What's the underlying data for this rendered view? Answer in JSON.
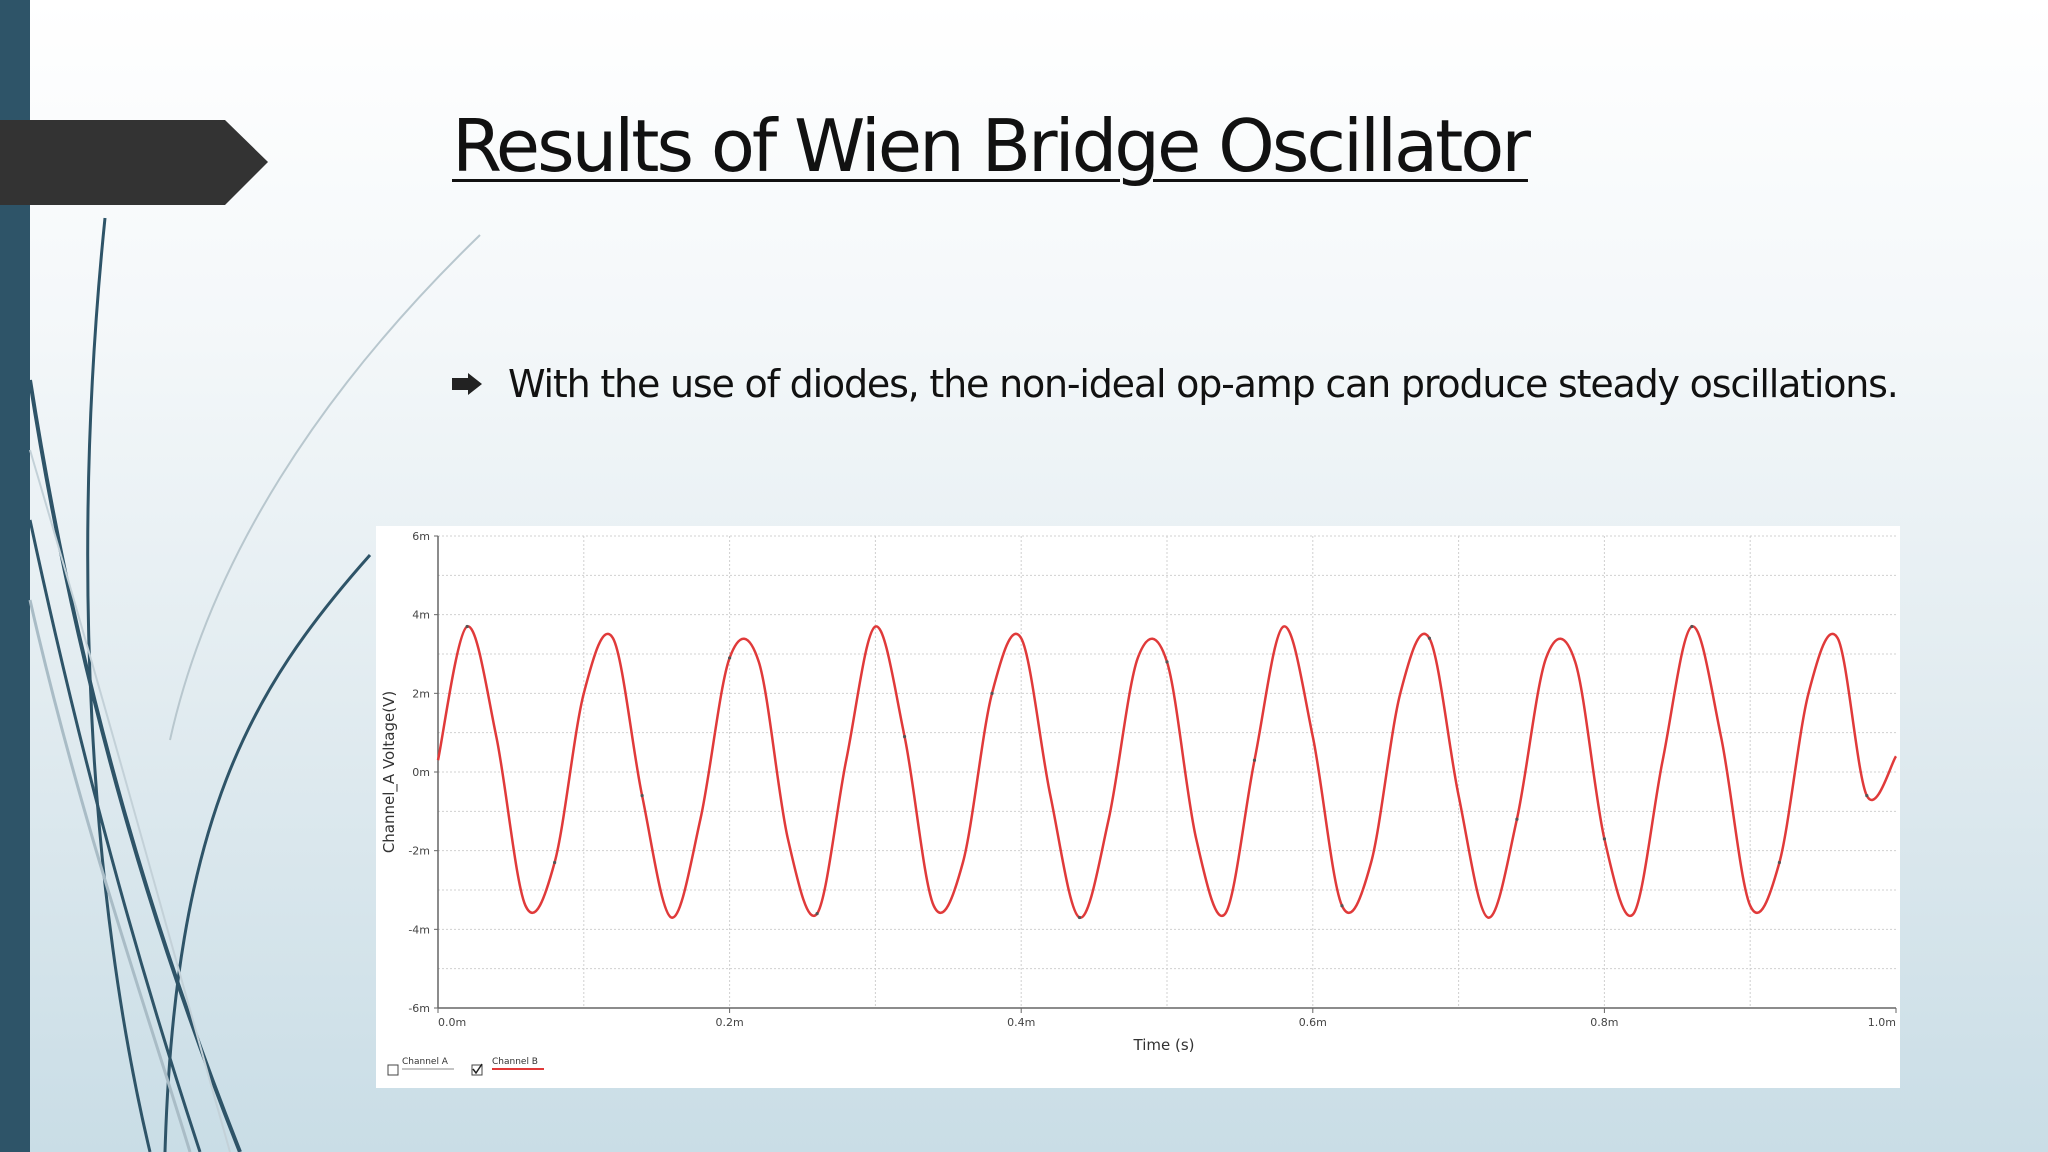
{
  "slide": {
    "title": "Results of Wien Bridge Oscillator",
    "bullet": "With the use of diodes, the non-ideal op-amp can produce steady oscillations.",
    "colors": {
      "accent_bar": "#2e5468",
      "arrow_tab": "#333333",
      "signal": "#e03a3a"
    }
  },
  "chart_data": {
    "type": "line",
    "xlabel": "Time (s)",
    "ylabel": "Channel_A Voltage(V)",
    "xlim": [
      0,
      1.0
    ],
    "ylim": [
      -6,
      6
    ],
    "x_ticks": [
      0,
      0.2,
      0.4,
      0.6,
      0.8,
      1.0
    ],
    "x_tick_labels": [
      "0.0m",
      "0.2m",
      "0.4m",
      "0.6m",
      "0.8m",
      "1.0m"
    ],
    "y_ticks": [
      6,
      4,
      2,
      0,
      -2,
      -4,
      -6
    ],
    "y_tick_labels": [
      "6m",
      "4m",
      "2m",
      "0m",
      "-2m",
      "-4m",
      "-6m"
    ],
    "grid": true,
    "legend": {
      "position": "bottom-left",
      "entries": [
        "Channel A",
        "Channel B"
      ]
    },
    "series": [
      {
        "name": "Channel B",
        "color": "#e03a3a",
        "x": [
          0,
          0.02,
          0.04,
          0.06,
          0.08,
          0.1,
          0.12,
          0.14,
          0.16,
          0.18,
          0.2,
          0.22,
          0.24,
          0.26,
          0.28,
          0.3,
          0.32,
          0.34,
          0.36,
          0.38,
          0.4,
          0.42,
          0.44,
          0.46,
          0.48,
          0.5,
          0.52,
          0.54,
          0.56,
          0.58,
          0.6,
          0.62,
          0.64,
          0.66,
          0.68,
          0.7,
          0.72,
          0.74,
          0.76,
          0.78,
          0.8,
          0.82,
          0.84,
          0.86,
          0.88,
          0.9,
          0.92,
          0.94,
          0.96,
          0.98,
          1.0
        ],
        "y": [
          0.3,
          3.7,
          0.9,
          -3.4,
          -2.3,
          2.0,
          3.4,
          -0.6,
          -3.7,
          -1.2,
          2.9,
          2.8,
          -1.7,
          -3.6,
          0.3,
          3.7,
          0.9,
          -3.4,
          -2.3,
          2.0,
          3.4,
          -0.6,
          -3.7,
          -1.2,
          2.9,
          2.8,
          -1.7,
          -3.6,
          0.3,
          3.7,
          0.9,
          -3.4,
          -2.3,
          2.0,
          3.4,
          -0.6,
          -3.7,
          -1.2,
          2.9,
          2.8,
          -1.7,
          -3.6,
          0.3,
          3.7,
          0.9,
          -3.4,
          -2.3,
          2.0,
          3.4,
          -0.6,
          0.4
        ]
      }
    ]
  }
}
